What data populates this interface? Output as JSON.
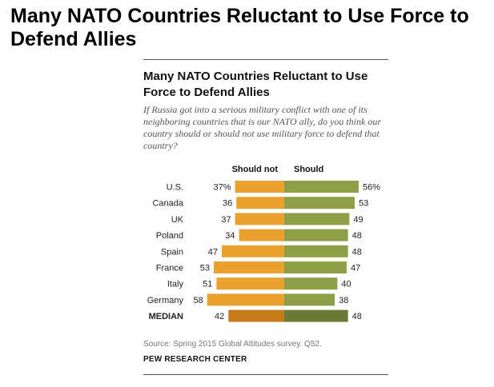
{
  "page_title": "Many NATO Countries Reluctant to Use Force to Defend Allies",
  "source": "Source: Spring 2015 Global Attitudes survey. Q52.",
  "credit": "PEW RESEARCH CENTER",
  "colors": {
    "should_not": "#eaa12e",
    "should": "#8e9f47",
    "median_should_not": "#c57c18",
    "median_should": "#6b7a36"
  },
  "chart_data": {
    "type": "bar",
    "title": "Many NATO Countries Reluctant to Use Force to Defend Allies",
    "subtitle": "If Russia got into a serious military conflict with one of its neighboring countries that is our NATO ally, do you think our country should or should not use military force to defend that country?",
    "legend": [
      "Should not",
      "Should"
    ],
    "categories": [
      "U.S.",
      "Canada",
      "UK",
      "Poland",
      "Spain",
      "France",
      "Italy",
      "Germany",
      "MEDIAN"
    ],
    "series": [
      {
        "name": "Should not",
        "values": [
          37,
          36,
          37,
          34,
          47,
          53,
          51,
          58,
          42
        ]
      },
      {
        "name": "Should",
        "values": [
          56,
          53,
          49,
          48,
          48,
          47,
          40,
          38,
          48
        ]
      }
    ],
    "value_labels": {
      "Should not": [
        "37%",
        "36",
        "37",
        "34",
        "47",
        "53",
        "51",
        "58",
        "42"
      ],
      "Should": [
        "56%",
        "53",
        "49",
        "48",
        "48",
        "47",
        "40",
        "38",
        "48"
      ]
    }
  }
}
